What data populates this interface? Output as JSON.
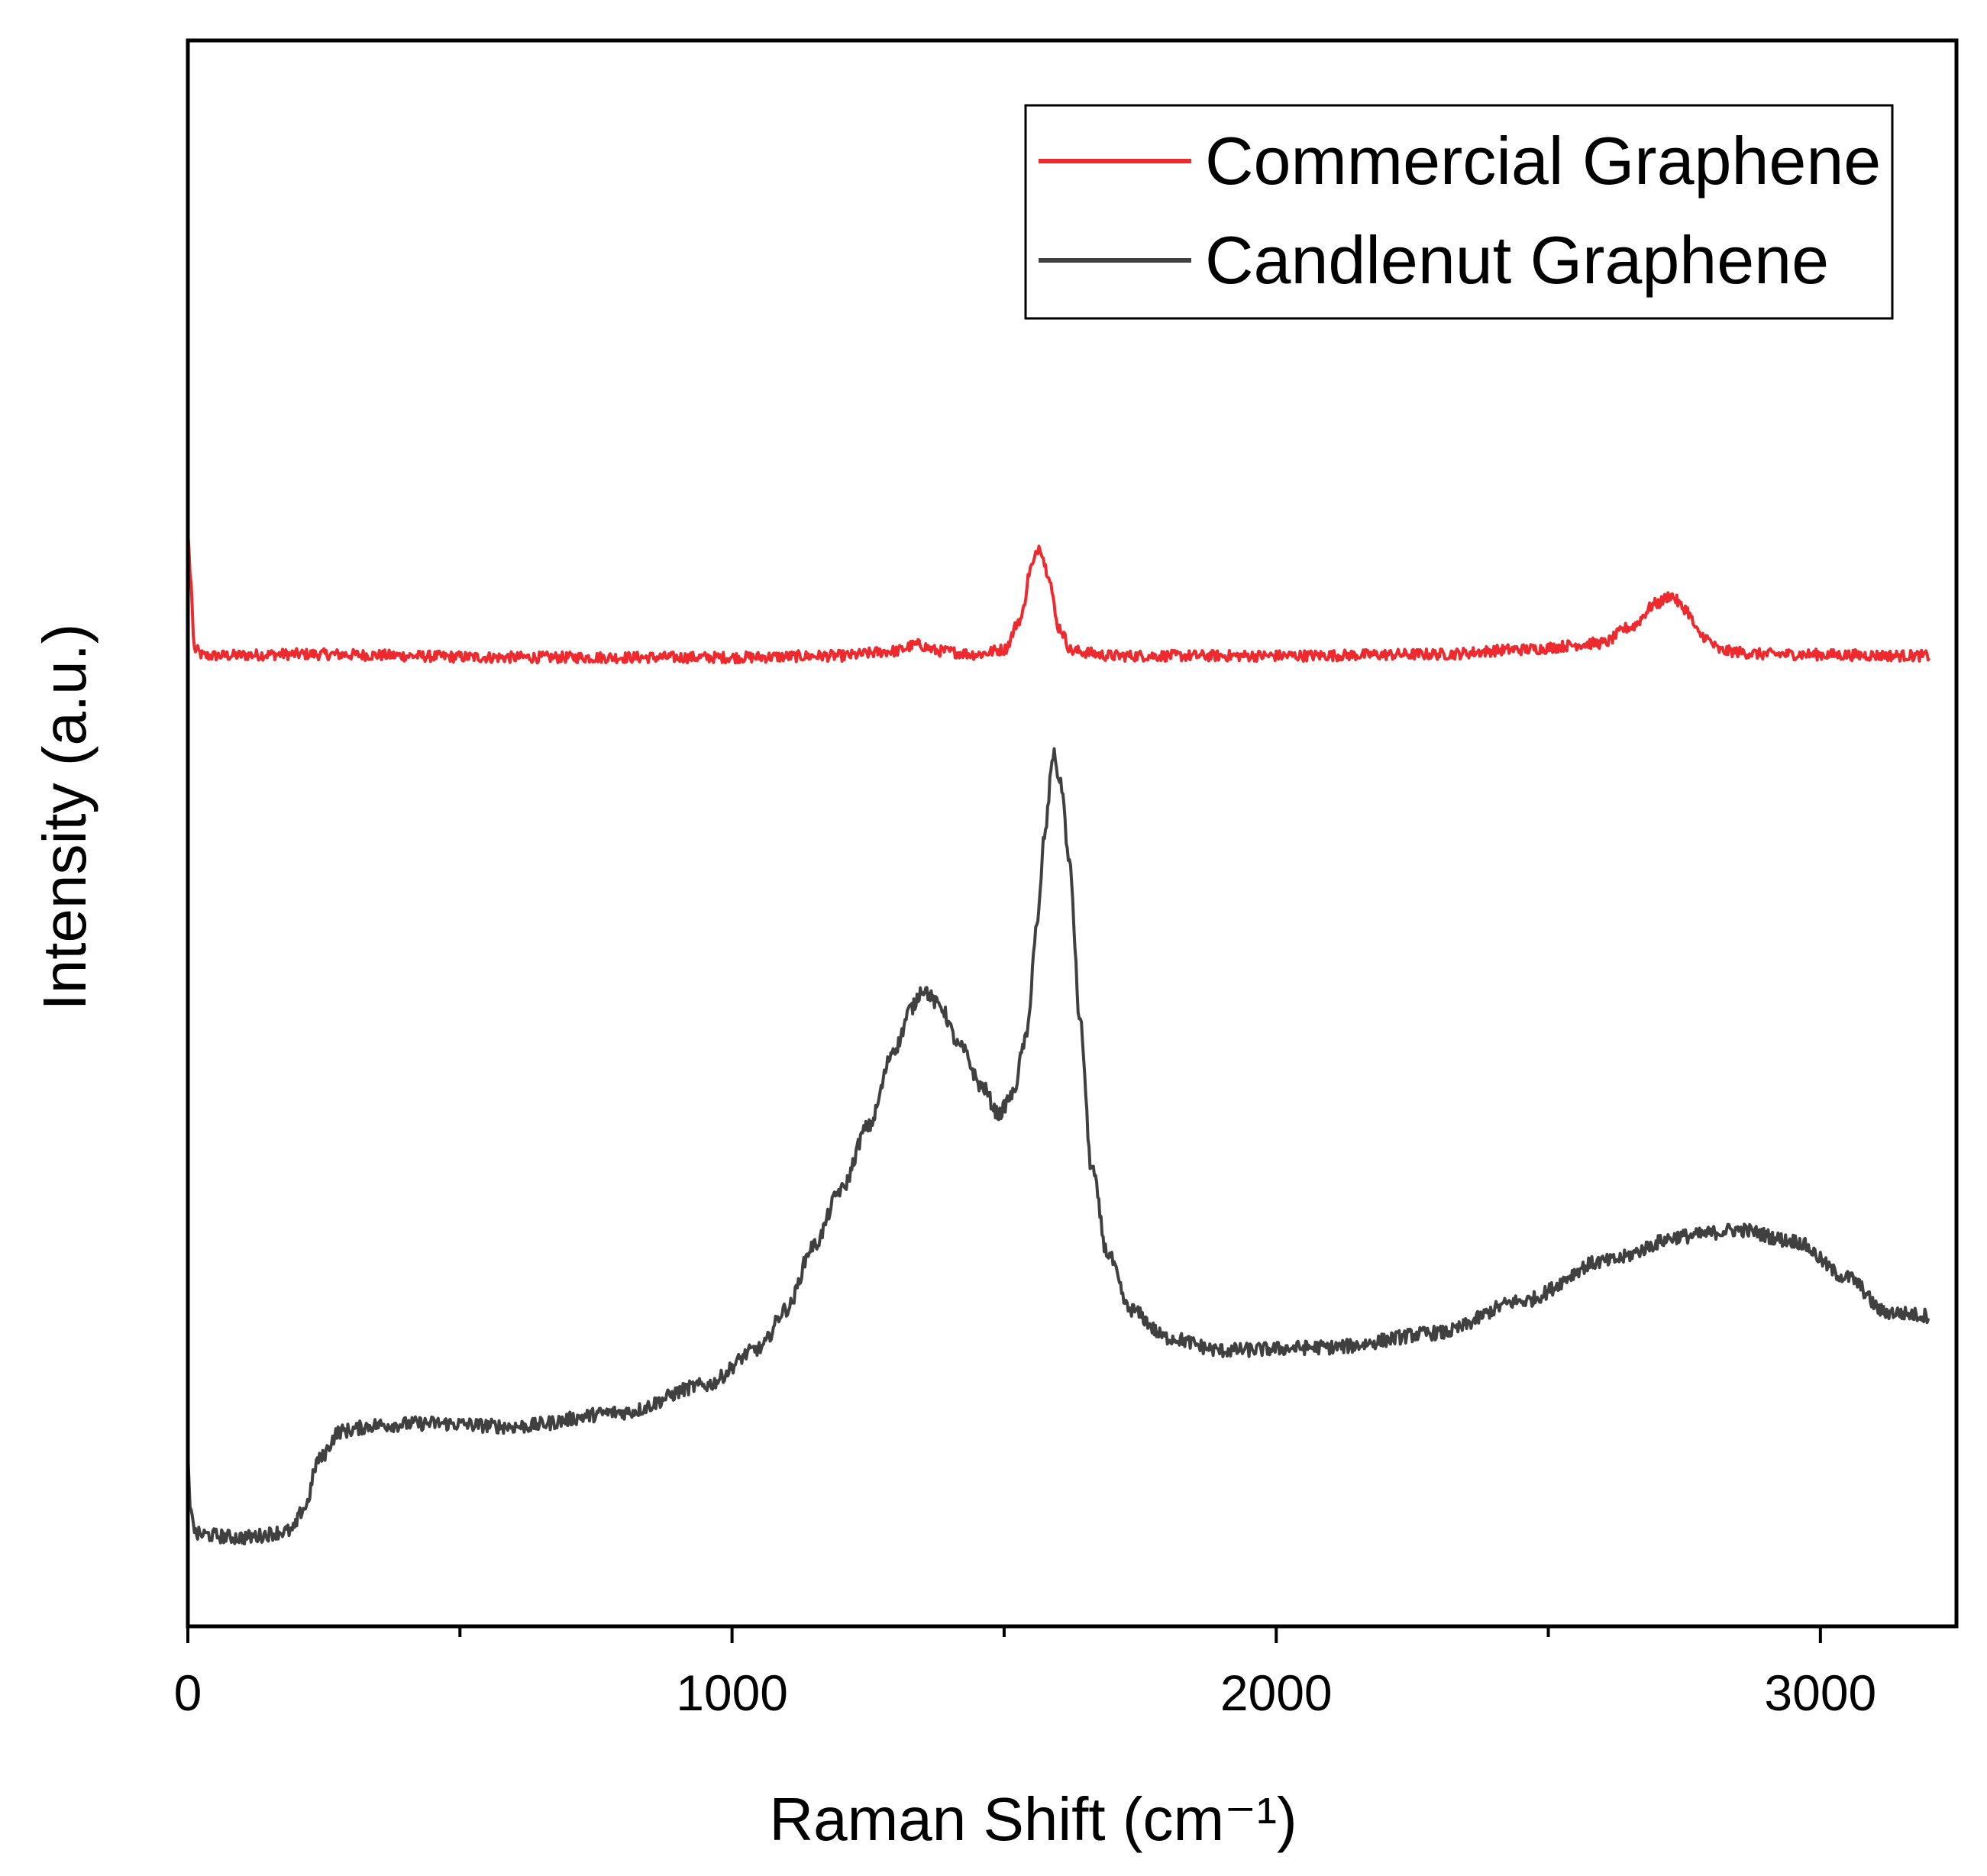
{
  "chart_data": {
    "type": "line",
    "title": "",
    "xlabel": "Raman Shift (cm⁻¹)",
    "ylabel": "Intensity (a.u.)",
    "xlim": [
      0,
      3250
    ],
    "ylim": [
      0,
      100
    ],
    "y_ticks_shown": false,
    "grid": false,
    "legend_position": "top-right",
    "x_ticks": [
      {
        "value": 0,
        "label": "0"
      },
      {
        "value": 1000,
        "label": "1000"
      },
      {
        "value": 2000,
        "label": "2000"
      },
      {
        "value": 3000,
        "label": "3000"
      }
    ],
    "x_minor_ticks": [
      500,
      1500,
      2500
    ],
    "series": [
      {
        "name": "Commercial Graphene",
        "color": "#ee2a2e",
        "noise": 0.35,
        "points": [
          [
            0,
            69
          ],
          [
            5,
            66
          ],
          [
            12,
            61.6
          ],
          [
            30,
            61.2
          ],
          [
            200,
            61.3
          ],
          [
            600,
            61.1
          ],
          [
            1000,
            61.1
          ],
          [
            1200,
            61.2
          ],
          [
            1300,
            61.5
          ],
          [
            1340,
            61.9
          ],
          [
            1380,
            61.5
          ],
          [
            1450,
            61.3
          ],
          [
            1500,
            61.6
          ],
          [
            1530,
            63.5
          ],
          [
            1550,
            66.8
          ],
          [
            1565,
            68.1
          ],
          [
            1580,
            66.5
          ],
          [
            1600,
            63.0
          ],
          [
            1625,
            61.5
          ],
          [
            1700,
            61.2
          ],
          [
            2000,
            61.2
          ],
          [
            2300,
            61.3
          ],
          [
            2450,
            61.6
          ],
          [
            2600,
            62.0
          ],
          [
            2650,
            63.0
          ],
          [
            2700,
            64.5
          ],
          [
            2725,
            65.0
          ],
          [
            2750,
            64.2
          ],
          [
            2780,
            62.5
          ],
          [
            2820,
            61.5
          ],
          [
            2900,
            61.3
          ],
          [
            3200,
            61.2
          ]
        ]
      },
      {
        "name": "Candlenut Graphene",
        "color": "#404040",
        "noise": 0.45,
        "points": [
          [
            0,
            11
          ],
          [
            4,
            7.5
          ],
          [
            15,
            5.8
          ],
          [
            100,
            5.6
          ],
          [
            190,
            6.0
          ],
          [
            215,
            7.5
          ],
          [
            240,
            10.5
          ],
          [
            280,
            12.3
          ],
          [
            350,
            12.7
          ],
          [
            450,
            12.8
          ],
          [
            600,
            12.6
          ],
          [
            800,
            13.5
          ],
          [
            950,
            15.2
          ],
          [
            1050,
            17.5
          ],
          [
            1100,
            20.0
          ],
          [
            1150,
            24.0
          ],
          [
            1200,
            27.5
          ],
          [
            1250,
            31.5
          ],
          [
            1300,
            36.5
          ],
          [
            1330,
            39.0
          ],
          [
            1350,
            40.2
          ],
          [
            1380,
            39.2
          ],
          [
            1420,
            36.5
          ],
          [
            1460,
            34.0
          ],
          [
            1490,
            32.3
          ],
          [
            1515,
            33.5
          ],
          [
            1540,
            37.0
          ],
          [
            1560,
            44.0
          ],
          [
            1575,
            50.0
          ],
          [
            1590,
            55.0
          ],
          [
            1605,
            53.0
          ],
          [
            1620,
            48.0
          ],
          [
            1640,
            38.0
          ],
          [
            1660,
            29.0
          ],
          [
            1690,
            23.5
          ],
          [
            1730,
            20.0
          ],
          [
            1800,
            18.2
          ],
          [
            1900,
            17.4
          ],
          [
            2100,
            17.6
          ],
          [
            2300,
            18.5
          ],
          [
            2450,
            20.5
          ],
          [
            2600,
            23.0
          ],
          [
            2750,
            24.6
          ],
          [
            2850,
            25.0
          ],
          [
            2950,
            24.3
          ],
          [
            3050,
            22.0
          ],
          [
            3120,
            19.8
          ],
          [
            3200,
            19.6
          ]
        ]
      }
    ]
  }
}
